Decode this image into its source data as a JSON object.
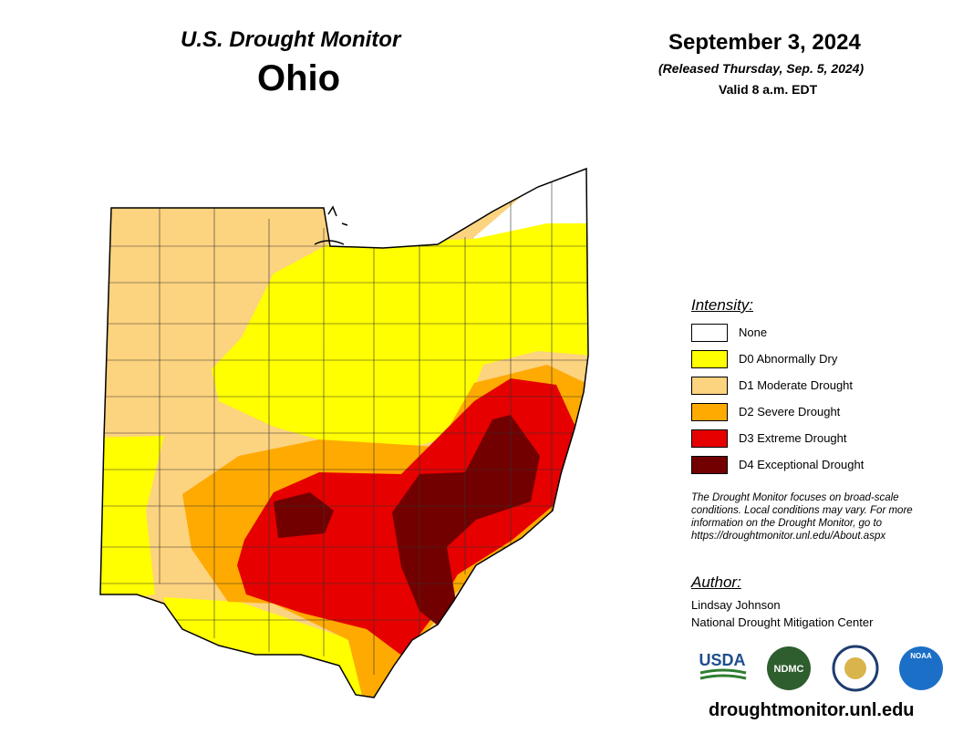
{
  "header": {
    "title": "U.S. Drought Monitor",
    "state": "Ohio"
  },
  "date": {
    "date": "September 3, 2024",
    "released": "(Released Thursday, Sep. 5, 2024)",
    "valid": "Valid 8 a.m. EDT"
  },
  "legend": {
    "title": "Intensity:",
    "items": [
      {
        "label": "None",
        "color": "#ffffff"
      },
      {
        "label": "D0 Abnormally Dry",
        "color": "#ffff00"
      },
      {
        "label": "D1 Moderate Drought",
        "color": "#fcd37f"
      },
      {
        "label": "D2 Severe Drought",
        "color": "#ffaa00"
      },
      {
        "label": "D3 Extreme Drought",
        "color": "#e60000"
      },
      {
        "label": "D4 Exceptional Drought",
        "color": "#730000"
      }
    ]
  },
  "note": "The Drought Monitor focuses on broad-scale conditions. Local conditions may vary. For more information on the Drought Monitor, go to https://droughtmonitor.unl.edu/About.aspx",
  "author": {
    "title": "Author:",
    "name": "Lindsay Johnson",
    "org": "National Drought Mitigation Center"
  },
  "logos": {
    "usda": "USDA",
    "ndmc": "NDMC",
    "noaa": "NOAA"
  },
  "url": "droughtmonitor.unl.edu"
}
